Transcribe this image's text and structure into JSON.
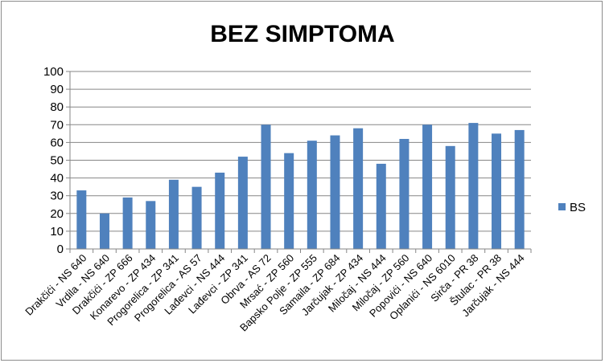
{
  "chart_data": {
    "type": "bar",
    "title": "BEZ SIMPTOMA",
    "xlabel": "",
    "ylabel": "",
    "ylim": [
      0,
      100
    ],
    "yticks": [
      0,
      10,
      20,
      30,
      40,
      50,
      60,
      70,
      80,
      90,
      100
    ],
    "grid": true,
    "legend_position": "right",
    "categories": [
      "Drakčići - NS 640",
      "Vrdila - NS 640",
      "Drakčići - ZP 666",
      "Konarevo - ZP 434",
      "Progorelica - ZP 341",
      "Progorelica - AS 57",
      "Lađevci - NS 444",
      "Lađevci - ZP 341",
      "Obrva - AS 72",
      "Mrsać - ZP 560",
      "Bapsko Polje - ZP 555",
      "Samaila - ZP 684",
      "Jarčujak - ZP 434",
      "Miločaj - NS 444",
      "Miločaj - ZP 560",
      "Popovići - NS 640",
      "Oplanići - NS 6010",
      "Sirča - PR 38",
      "Štulac - PR 38",
      "Jarčujak - NS 444"
    ],
    "series": [
      {
        "name": "BS",
        "color": "#4f81bd",
        "values": [
          33,
          20,
          29,
          27,
          39,
          35,
          43,
          52,
          70,
          54,
          61,
          64,
          68,
          48,
          62,
          70,
          58,
          71,
          65,
          67
        ]
      }
    ]
  }
}
